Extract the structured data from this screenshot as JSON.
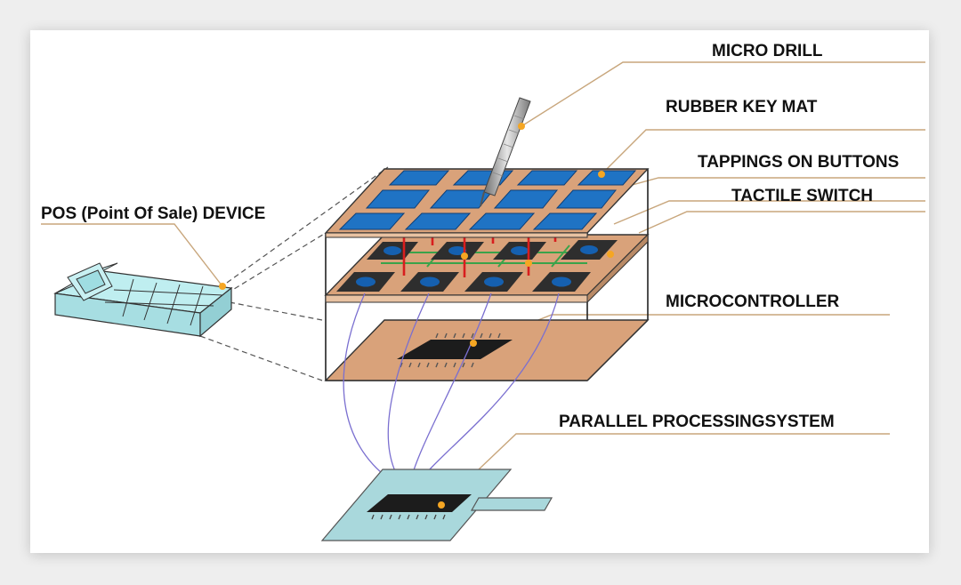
{
  "labels": {
    "micro_drill": "MICRO DRILL",
    "rubber_key_mat": "RUBBER KEY MAT",
    "tappings_on_buttons": "TAPPINGS ON BUTTONS",
    "tactile_switch": "TACTILE SWITCH",
    "pos_device": "POS (Point Of Sale) DEVICE",
    "microcontroller": "MICROCONTROLLER",
    "parallel_processing_system": "PARALLEL PROCESSINGSYSTEM"
  },
  "colors": {
    "key_blue": "#1f73c4",
    "board_copper": "#d9a27a",
    "switch_dark": "#2e2e2e",
    "switch_blue": "#1560b0",
    "pin_red": "#d81e1e",
    "leader_tan": "#c8a67c",
    "marker_orange": "#f5a623",
    "pos_cyan": "#bfeef0",
    "base_cyan": "#a9d8dc",
    "wire_purple": "#7a6fd0"
  }
}
